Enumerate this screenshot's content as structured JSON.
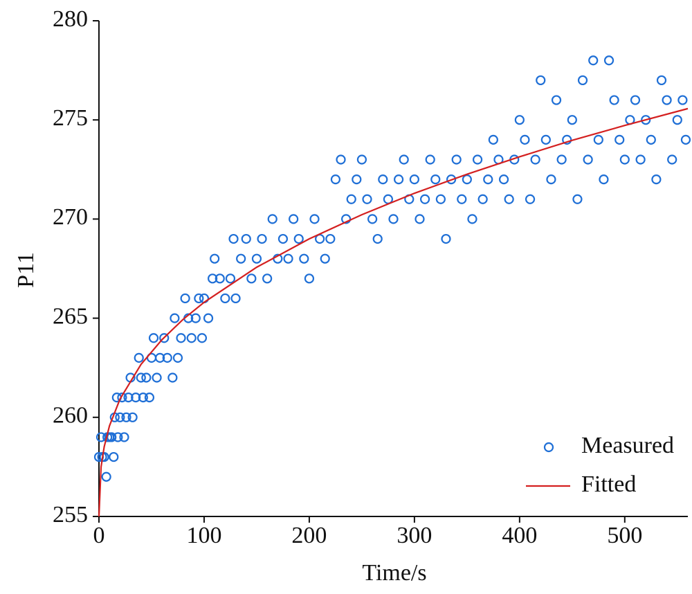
{
  "chart_data": {
    "type": "scatter",
    "xlabel": "Time/s",
    "ylabel": "P11",
    "xlim": [
      0,
      560
    ],
    "ylim": [
      255,
      280
    ],
    "xticks": [
      0,
      100,
      200,
      300,
      400,
      500
    ],
    "yticks": [
      255,
      260,
      265,
      270,
      275,
      280
    ],
    "legend": "lower right",
    "series": [
      {
        "name": "Measured",
        "type": "scatter",
        "color": "#1f6fd6",
        "x": [
          0,
          2,
          3,
          5,
          7,
          8,
          10,
          12,
          14,
          15,
          17,
          18,
          20,
          22,
          24,
          26,
          28,
          30,
          32,
          35,
          38,
          40,
          42,
          45,
          48,
          50,
          52,
          55,
          58,
          62,
          65,
          70,
          72,
          75,
          78,
          82,
          85,
          88,
          92,
          95,
          98,
          100,
          104,
          108,
          110,
          115,
          120,
          125,
          128,
          130,
          135,
          140,
          145,
          150,
          155,
          160,
          165,
          170,
          175,
          180,
          185,
          190,
          195,
          200,
          205,
          210,
          215,
          220,
          225,
          230,
          235,
          240,
          245,
          250,
          255,
          260,
          265,
          270,
          275,
          280,
          285,
          290,
          295,
          300,
          305,
          310,
          315,
          320,
          325,
          330,
          335,
          340,
          345,
          350,
          355,
          360,
          365,
          370,
          375,
          380,
          385,
          390,
          395,
          400,
          405,
          410,
          415,
          420,
          425,
          430,
          435,
          440,
          445,
          450,
          455,
          460,
          465,
          470,
          475,
          480,
          485,
          490,
          495,
          500,
          505,
          510,
          515,
          520,
          525,
          530,
          535,
          540,
          545,
          550,
          555,
          558
        ],
        "values": [
          258,
          259,
          258,
          258,
          257,
          259,
          259,
          259,
          258,
          260,
          261,
          259,
          260,
          261,
          259,
          260,
          261,
          262,
          260,
          261,
          263,
          262,
          261,
          262,
          261,
          263,
          264,
          262,
          263,
          264,
          263,
          262,
          265,
          263,
          264,
          266,
          265,
          264,
          265,
          266,
          264,
          266,
          265,
          267,
          268,
          267,
          266,
          267,
          269,
          266,
          268,
          269,
          267,
          268,
          269,
          267,
          270,
          268,
          269,
          268,
          270,
          269,
          268,
          267,
          270,
          269,
          268,
          269,
          272,
          273,
          270,
          271,
          272,
          273,
          271,
          270,
          269,
          272,
          271,
          270,
          272,
          273,
          271,
          272,
          270,
          271,
          273,
          272,
          271,
          269,
          272,
          273,
          271,
          272,
          270,
          273,
          271,
          272,
          274,
          273,
          272,
          271,
          273,
          275,
          274,
          271,
          273,
          277,
          274,
          272,
          276,
          273,
          274,
          275,
          271,
          277,
          273,
          278,
          274,
          272,
          278,
          276,
          274,
          273,
          275,
          276,
          273,
          275,
          274,
          272,
          277,
          276,
          273,
          275,
          276,
          274
        ]
      },
      {
        "name": "Fitted",
        "type": "line",
        "color": "#d42020",
        "x": [
          0,
          2,
          5,
          10,
          20,
          40,
          60,
          80,
          100,
          150,
          200,
          250,
          300,
          350,
          400,
          450,
          500,
          560
        ],
        "values": [
          255,
          257.5,
          258.52,
          259.57,
          260.92,
          262.67,
          263.92,
          264.94,
          265.8,
          267.57,
          269,
          270.22,
          271.3,
          272.26,
          273.14,
          273.97,
          274.72,
          275.57
        ]
      }
    ]
  }
}
